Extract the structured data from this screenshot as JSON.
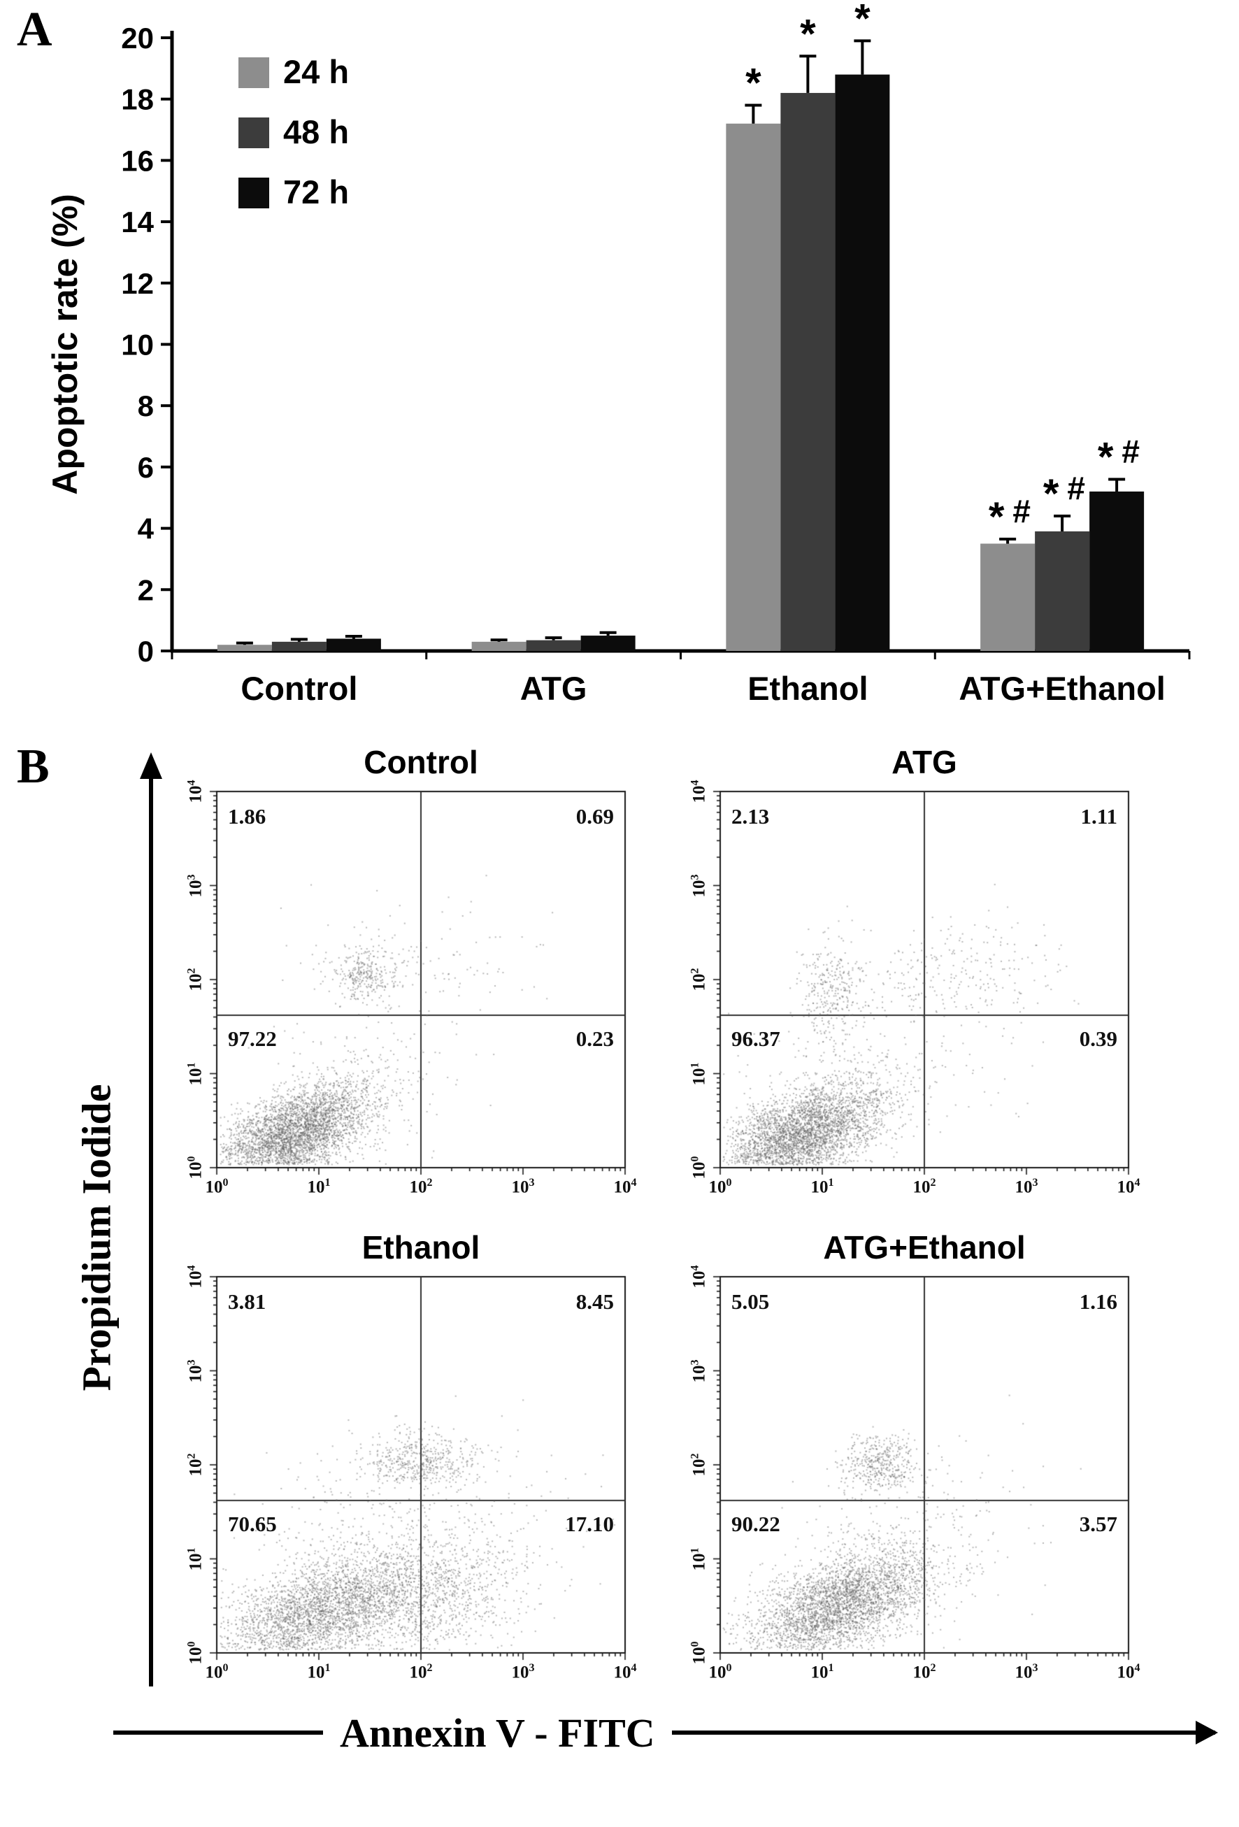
{
  "panels": {
    "a": {
      "label": "A"
    },
    "b": {
      "label": "B"
    }
  },
  "chart_data": [
    {
      "type": "bar",
      "panel": "A",
      "title": "",
      "xlabel": "",
      "ylabel": "Apoptotic rate (%)",
      "ylim": [
        0,
        20
      ],
      "ytick_step": 2,
      "grid": false,
      "legend_position": "top-left",
      "categories": [
        "Control",
        "ATG",
        "Ethanol",
        "ATG+Ethanol"
      ],
      "series": [
        {
          "name": "24 h",
          "color": "#8d8d8d",
          "values": [
            0.2,
            0.3,
            17.2,
            3.5
          ],
          "errors": [
            0.06,
            0.06,
            0.6,
            0.15
          ]
        },
        {
          "name": "48 h",
          "color": "#3c3c3c",
          "values": [
            0.3,
            0.35,
            18.2,
            3.9
          ],
          "errors": [
            0.08,
            0.08,
            1.2,
            0.5
          ]
        },
        {
          "name": "72 h",
          "color": "#0c0c0c",
          "values": [
            0.4,
            0.5,
            18.8,
            5.2
          ],
          "errors": [
            0.08,
            0.1,
            1.1,
            0.4
          ]
        }
      ],
      "significance": [
        [
          "",
          "",
          "*",
          "*#"
        ],
        [
          "",
          "",
          "*",
          "*#"
        ],
        [
          "",
          "",
          "*",
          "*#"
        ]
      ]
    },
    {
      "type": "scatter",
      "panel": "B",
      "xlabel": "Annexin V - FITC",
      "ylabel": "Propidium Iodide",
      "xscale": "log",
      "yscale": "log",
      "xlim_decades": [
        0,
        4
      ],
      "ylim_decades": [
        0,
        4
      ],
      "ticks": [
        0,
        1,
        2,
        3,
        4
      ],
      "quadrant_x": 2,
      "quadrant_y": 1.62,
      "dot_color": "#5f5f5f",
      "plots": [
        {
          "title": "Control",
          "quadrants": {
            "ul": "1.86",
            "ur": "0.69",
            "ll": "97.22",
            "lr": "0.23"
          },
          "clusters": [
            {
              "cx": 0.75,
              "cy": 0.35,
              "sx": 0.38,
              "sy": 0.27,
              "corr": 0.55,
              "n": 3600
            },
            {
              "cx": 1.45,
              "cy": 2.05,
              "sx": 0.16,
              "sy": 0.13,
              "corr": 0,
              "n": 280
            },
            {
              "cx": 1.95,
              "cy": 2.15,
              "sx": 0.55,
              "sy": 0.33,
              "corr": 0,
              "n": 140
            },
            {
              "cx": 1.3,
              "cy": 0.8,
              "sx": 0.5,
              "sy": 0.4,
              "corr": 0.3,
              "n": 250
            }
          ]
        },
        {
          "title": "ATG",
          "quadrants": {
            "ul": "2.13",
            "ur": "1.11",
            "ll": "96.37",
            "lr": "0.39"
          },
          "clusters": [
            {
              "cx": 0.8,
              "cy": 0.35,
              "sx": 0.4,
              "sy": 0.28,
              "corr": 0.55,
              "n": 3600
            },
            {
              "cx": 1.12,
              "cy": 1.9,
              "sx": 0.16,
              "sy": 0.25,
              "corr": 0,
              "n": 300
            },
            {
              "cx": 2.4,
              "cy": 2.1,
              "sx": 0.5,
              "sy": 0.3,
              "corr": 0,
              "n": 240
            },
            {
              "cx": 1.5,
              "cy": 1.0,
              "sx": 0.6,
              "sy": 0.5,
              "corr": 0.2,
              "n": 220
            }
          ]
        },
        {
          "title": "Ethanol",
          "quadrants": {
            "ul": "3.81",
            "ur": "8.45",
            "ll": "70.65",
            "lr": "17.10"
          },
          "clusters": [
            {
              "cx": 1.05,
              "cy": 0.45,
              "sx": 0.5,
              "sy": 0.3,
              "corr": 0.5,
              "n": 3000
            },
            {
              "cx": 2.15,
              "cy": 0.6,
              "sx": 0.45,
              "sy": 0.35,
              "corr": 0.3,
              "n": 900
            },
            {
              "cx": 2.0,
              "cy": 2.05,
              "sx": 0.28,
              "sy": 0.16,
              "corr": 0,
              "n": 480
            },
            {
              "cx": 1.8,
              "cy": 1.3,
              "sx": 0.8,
              "sy": 0.5,
              "corr": 0.2,
              "n": 420
            }
          ]
        },
        {
          "title": "ATG+Ethanol",
          "quadrants": {
            "ul": "5.05",
            "ur": "1.16",
            "ll": "90.22",
            "lr": "3.57"
          },
          "clusters": [
            {
              "cx": 1.15,
              "cy": 0.5,
              "sx": 0.45,
              "sy": 0.3,
              "corr": 0.55,
              "n": 3300
            },
            {
              "cx": 1.55,
              "cy": 2.0,
              "sx": 0.2,
              "sy": 0.15,
              "corr": 0,
              "n": 420
            },
            {
              "cx": 1.9,
              "cy": 1.2,
              "sx": 0.6,
              "sy": 0.5,
              "corr": 0.3,
              "n": 260
            }
          ]
        }
      ]
    }
  ]
}
